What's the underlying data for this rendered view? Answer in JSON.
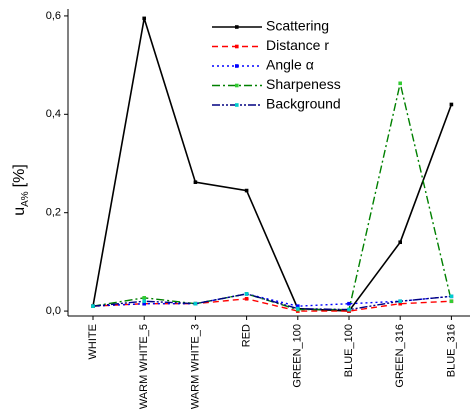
{
  "chart_data": {
    "type": "line",
    "y_label": {
      "main": "u",
      "sub": "A%",
      "unit": "[%]"
    },
    "categories": [
      "WHITE",
      "WARM WHITE_5",
      "WARM WHITE_3",
      "RED",
      "GREEN_100",
      "BLUE_100",
      "GREEN_316",
      "BLUE_316"
    ],
    "ylim": [
      -0.01,
      0.61
    ],
    "yticks": [
      {
        "value": 0,
        "label": "0,0"
      },
      {
        "value": 0.2,
        "label": "0,2"
      },
      {
        "value": 0.4,
        "label": "0,4"
      },
      {
        "value": 0.6,
        "label": "0,6"
      }
    ],
    "legend": "top",
    "series": [
      {
        "name": "Scattering",
        "color": "#000000",
        "marker_color": "#000000",
        "dash": "solid",
        "values": [
          0.01,
          0.595,
          0.262,
          0.245,
          0.005,
          0.0,
          0.14,
          0.42
        ]
      },
      {
        "name": "Distance r",
        "color": "#ff0000",
        "marker_color": "#ff0000",
        "dash": "dashed",
        "values": [
          0.01,
          0.015,
          0.015,
          0.025,
          0.0,
          0.0,
          0.015,
          0.02
        ]
      },
      {
        "name": "Angle α",
        "color": "#0000ff",
        "marker_color": "#0000ff",
        "dash": "dotted",
        "values": [
          0.01,
          0.015,
          0.015,
          0.035,
          0.01,
          0.015,
          0.02,
          0.03
        ]
      },
      {
        "name": "Sharpeness",
        "color": "#008000",
        "marker_color": "#33cc33",
        "dash": "dashdot",
        "values": [
          0.01,
          0.027,
          0.015,
          0.035,
          0.003,
          0.003,
          0.463,
          0.02
        ]
      },
      {
        "name": "Background",
        "color": "#000080",
        "marker_color": "#00cccc",
        "dash": "dashdotdot",
        "values": [
          0.01,
          0.02,
          0.015,
          0.035,
          0.005,
          0.003,
          0.02,
          0.03
        ]
      }
    ]
  }
}
